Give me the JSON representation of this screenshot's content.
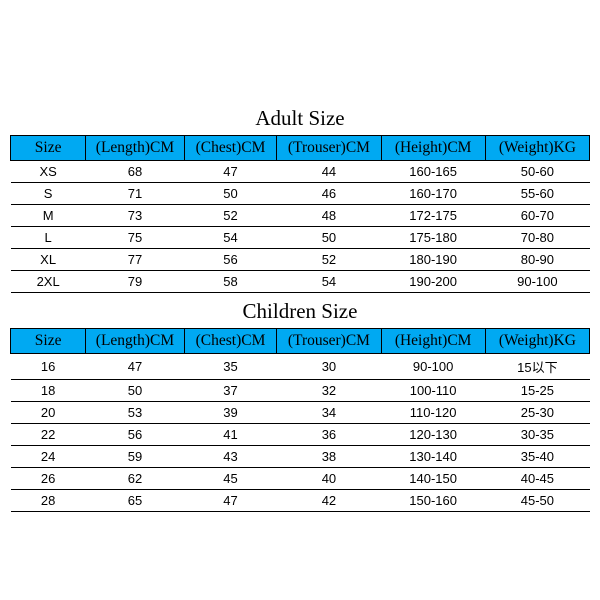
{
  "adult": {
    "title": "Adult Size",
    "columns": [
      "Size",
      "(Length)CM",
      "(Chest)CM",
      "(Trouser)CM",
      "(Height)CM",
      "(Weight)KG"
    ],
    "rows": [
      [
        "XS",
        "68",
        "47",
        "44",
        "160-165",
        "50-60"
      ],
      [
        "S",
        "71",
        "50",
        "46",
        "160-170",
        "55-60"
      ],
      [
        "M",
        "73",
        "52",
        "48",
        "172-175",
        "60-70"
      ],
      [
        "L",
        "75",
        "54",
        "50",
        "175-180",
        "70-80"
      ],
      [
        "XL",
        "77",
        "56",
        "52",
        "180-190",
        "80-90"
      ],
      [
        "2XL",
        "79",
        "58",
        "54",
        "190-200",
        "90-100"
      ]
    ]
  },
  "children": {
    "title": "Children Size",
    "columns": [
      "Size",
      "(Length)CM",
      "(Chest)CM",
      "(Trouser)CM",
      "(Height)CM",
      "(Weight)KG"
    ],
    "rows": [
      [
        "16",
        "47",
        "35",
        "30",
        "90-100",
        "15以下"
      ],
      [
        "18",
        "50",
        "37",
        "32",
        "100-110",
        "15-25"
      ],
      [
        "20",
        "53",
        "39",
        "34",
        "110-120",
        "25-30"
      ],
      [
        "22",
        "56",
        "41",
        "36",
        "120-130",
        "30-35"
      ],
      [
        "24",
        "59",
        "43",
        "38",
        "130-140",
        "35-40"
      ],
      [
        "26",
        "62",
        "45",
        "40",
        "140-150",
        "40-45"
      ],
      [
        "28",
        "65",
        "47",
        "42",
        "150-160",
        "45-50"
      ]
    ]
  },
  "style": {
    "header_bg": "#00a9f2",
    "border_color": "#000000",
    "title_fontsize": 21,
    "header_fontsize": 15.5,
    "cell_fontsize": 13,
    "background_color": "#ffffff"
  }
}
